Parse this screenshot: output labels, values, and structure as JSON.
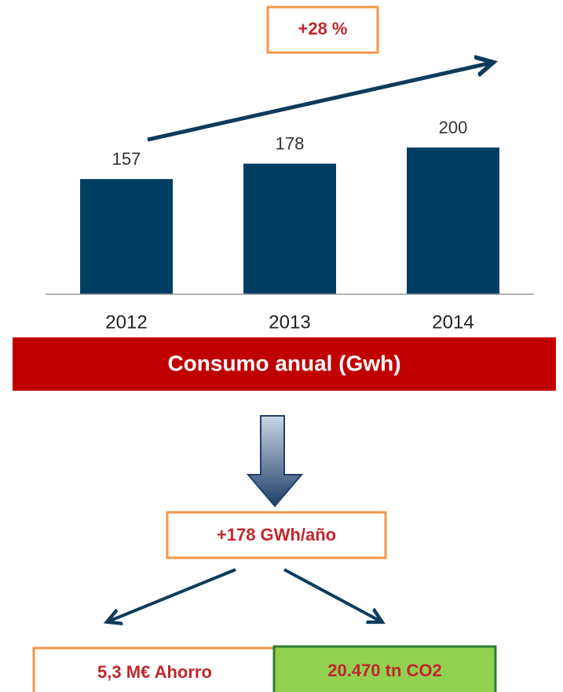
{
  "chart_data": {
    "type": "bar",
    "title": "Consumo anual (Gwh)",
    "categories": [
      "2012",
      "2013",
      "2014"
    ],
    "values": [
      157,
      178,
      200
    ],
    "color": "#003f63",
    "annotations": [
      "+28 %",
      "+178 GWh/año",
      "5,3 M€ Ahorro",
      "20.470 tn CO2"
    ]
  }
}
